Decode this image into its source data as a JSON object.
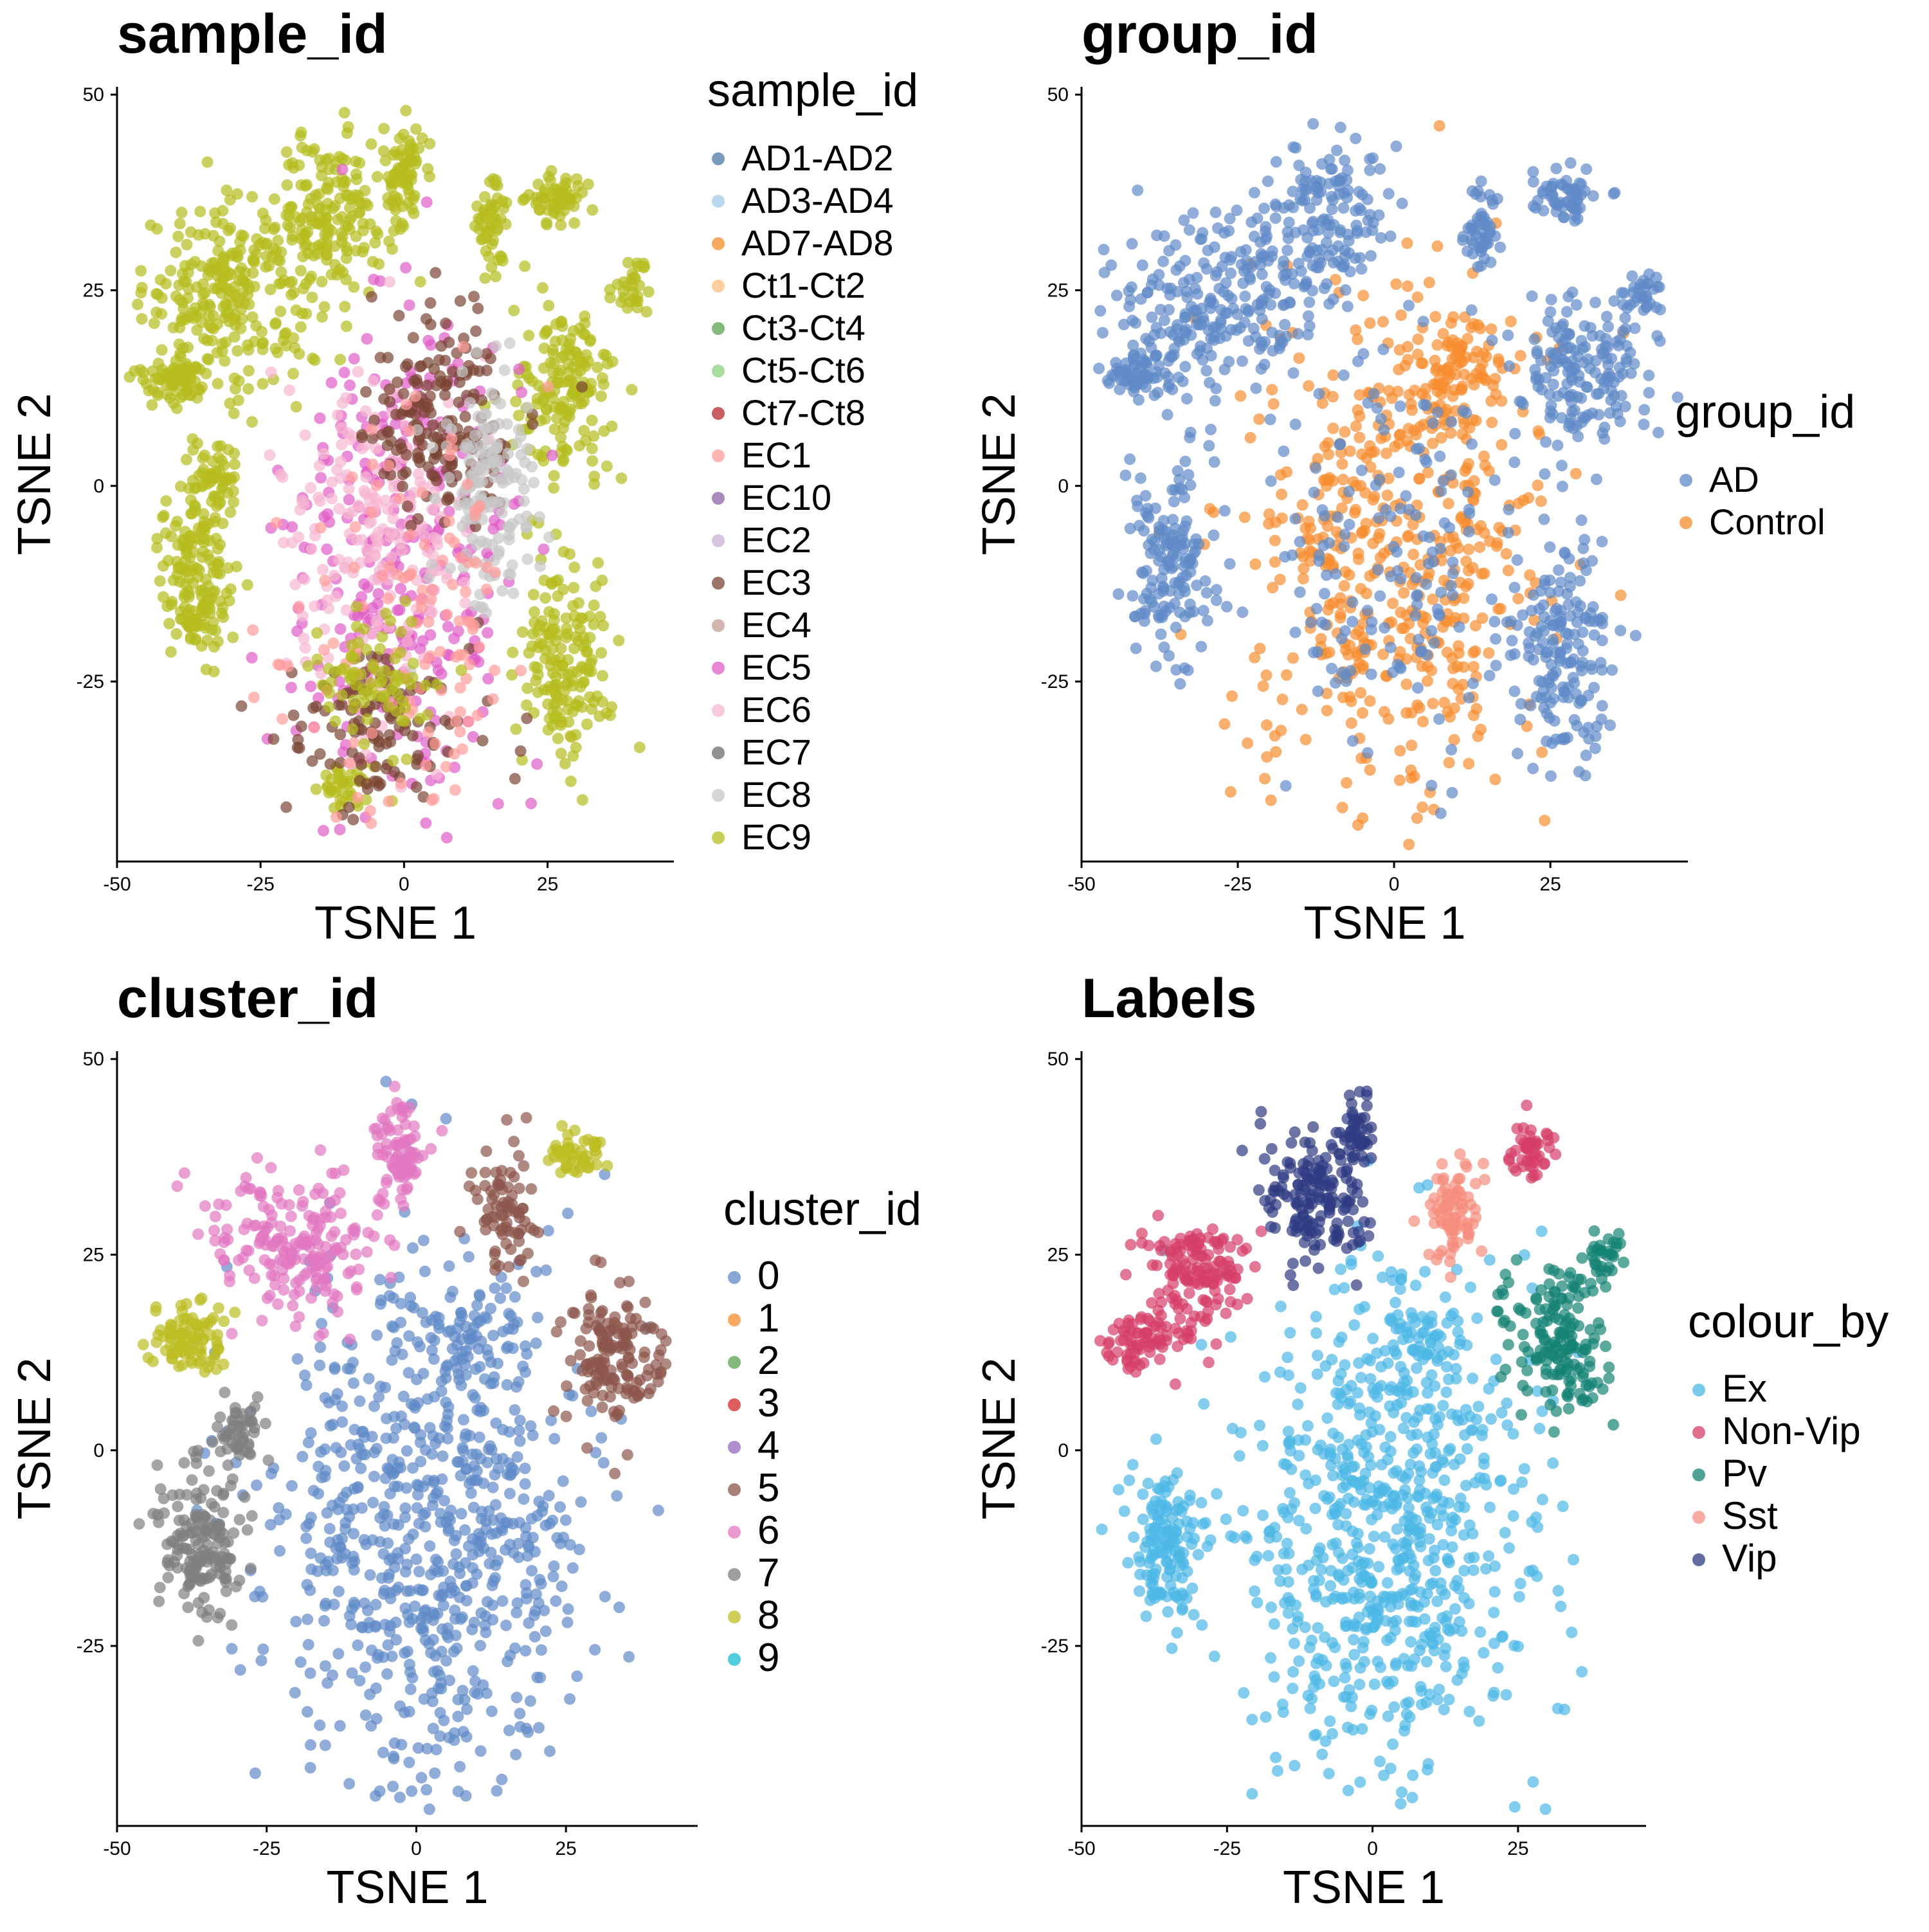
{
  "panels": [
    {
      "title": "sample_id",
      "legend_title": "sample_id",
      "xlabel": "TSNE 1",
      "ylabel": "TSNE 2",
      "xticks": [
        "-50",
        "-25",
        "0",
        "25"
      ],
      "yticks": [
        "50",
        "25",
        "0",
        "-25"
      ]
    },
    {
      "title": "group_id",
      "legend_title": "group_id",
      "xlabel": "TSNE 1",
      "ylabel": "TSNE 2",
      "xticks": [
        "-50",
        "-25",
        "0",
        "25"
      ],
      "yticks": [
        "50",
        "25",
        "0",
        "-25"
      ]
    },
    {
      "title": "cluster_id",
      "legend_title": "cluster_id",
      "xlabel": "TSNE 1",
      "ylabel": "TSNE 2",
      "xticks": [
        "-50",
        "-25",
        "0",
        "25"
      ],
      "yticks": [
        "50",
        "25",
        "0",
        "-25"
      ]
    },
    {
      "title": "Labels",
      "legend_title": "colour_by",
      "xlabel": "TSNE 1",
      "ylabel": "TSNE 2",
      "xticks": [
        "-50",
        "-25",
        "0",
        "25"
      ],
      "yticks": [
        "50",
        "25",
        "0",
        "-25"
      ]
    }
  ],
  "chart_data": [
    {
      "type": "scatter",
      "title": "sample_id",
      "xlabel": "TSNE 1",
      "ylabel": "TSNE 2",
      "xlim": [
        -50,
        47
      ],
      "ylim": [
        -48,
        51
      ],
      "legend_placement": "right",
      "grid": false,
      "legend": [
        {
          "name": "AD1-AD2",
          "color": "#4e79a7"
        },
        {
          "name": "AD3-AD4",
          "color": "#a0cbe8"
        },
        {
          "name": "AD7-AD8",
          "color": "#f28e2b"
        },
        {
          "name": "Ct1-Ct2",
          "color": "#ffbe7d"
        },
        {
          "name": "Ct3-Ct4",
          "color": "#59a14f"
        },
        {
          "name": "Ct5-Ct6",
          "color": "#8cd17d"
        },
        {
          "name": "Ct7-Ct8",
          "color": "#b6292f"
        },
        {
          "name": "EC1",
          "color": "#ff9d9a"
        },
        {
          "name": "EC10",
          "color": "#8a62a8"
        },
        {
          "name": "EC2",
          "color": "#c5b0d5"
        },
        {
          "name": "EC3",
          "color": "#7b4433"
        },
        {
          "name": "EC4",
          "color": "#c49c94"
        },
        {
          "name": "EC5",
          "color": "#e05dc8"
        },
        {
          "name": "EC6",
          "color": "#f7b6d2"
        },
        {
          "name": "EC7",
          "color": "#6e6e6e"
        },
        {
          "name": "EC8",
          "color": "#c7c7c7"
        },
        {
          "name": "EC9",
          "color": "#b5bd1e"
        }
      ],
      "regions": [
        {
          "name": "EC9",
          "cx": -30,
          "cy": 25,
          "rx": 14,
          "ry": 10,
          "n": 260
        },
        {
          "name": "EC9",
          "cx": -12,
          "cy": 35,
          "rx": 9,
          "ry": 9,
          "n": 160
        },
        {
          "name": "EC9",
          "cx": 0,
          "cy": 40,
          "rx": 3,
          "ry": 6,
          "n": 70
        },
        {
          "name": "EC9",
          "cx": -40,
          "cy": 14,
          "rx": 6,
          "ry": 3,
          "n": 80
        },
        {
          "name": "EC9",
          "cx": -36,
          "cy": -12,
          "rx": 6,
          "ry": 10,
          "n": 160
        },
        {
          "name": "EC9",
          "cx": -33,
          "cy": 0,
          "rx": 4,
          "ry": 5,
          "n": 60
        },
        {
          "name": "EC9",
          "cx": 28,
          "cy": 12,
          "rx": 8,
          "ry": 10,
          "n": 160
        },
        {
          "name": "EC9",
          "cx": 28,
          "cy": -22,
          "rx": 7,
          "ry": 12,
          "n": 170
        },
        {
          "name": "EC9",
          "cx": 27,
          "cy": 37,
          "rx": 5,
          "ry": 3,
          "n": 60
        },
        {
          "name": "EC9",
          "cx": 15,
          "cy": 33,
          "rx": 3,
          "ry": 5,
          "n": 50
        },
        {
          "name": "EC9",
          "cx": -10,
          "cy": -38,
          "rx": 4,
          "ry": 3,
          "n": 40
        },
        {
          "name": "EC9",
          "cx": 40,
          "cy": 25,
          "rx": 3,
          "ry": 3,
          "n": 30
        },
        {
          "name": "EC5",
          "cx": 0,
          "cy": -10,
          "rx": 18,
          "ry": 28,
          "n": 320
        },
        {
          "name": "EC6",
          "cx": -5,
          "cy": -5,
          "rx": 14,
          "ry": 20,
          "n": 200
        },
        {
          "name": "EC3",
          "cx": 6,
          "cy": 8,
          "rx": 12,
          "ry": 12,
          "n": 180
        },
        {
          "name": "EC3",
          "cx": -5,
          "cy": -30,
          "rx": 14,
          "ry": 10,
          "n": 120
        },
        {
          "name": "EC8",
          "cx": 15,
          "cy": 0,
          "rx": 8,
          "ry": 14,
          "n": 150
        },
        {
          "name": "EC1",
          "cx": 3,
          "cy": -20,
          "rx": 20,
          "ry": 24,
          "n": 120
        },
        {
          "name": "EC9",
          "cx": -5,
          "cy": -25,
          "rx": 10,
          "ry": 8,
          "n": 80
        }
      ]
    },
    {
      "type": "scatter",
      "title": "group_id",
      "xlabel": "TSNE 1",
      "ylabel": "TSNE 2",
      "xlim": [
        -50,
        47
      ],
      "ylim": [
        -48,
        51
      ],
      "legend_placement": "right",
      "grid": false,
      "legend": [
        {
          "name": "AD",
          "color": "#5f8ac7"
        },
        {
          "name": "Control",
          "color": "#f68d2f"
        }
      ],
      "regions": [
        {
          "name": "Control",
          "cx": 0,
          "cy": -8,
          "rx": 22,
          "ry": 30,
          "n": 520
        },
        {
          "name": "Control",
          "cx": 10,
          "cy": 14,
          "rx": 7,
          "ry": 6,
          "n": 80
        },
        {
          "name": "AD",
          "cx": -28,
          "cy": 24,
          "rx": 16,
          "ry": 10,
          "n": 240
        },
        {
          "name": "AD",
          "cx": -10,
          "cy": 35,
          "rx": 9,
          "ry": 9,
          "n": 140
        },
        {
          "name": "AD",
          "cx": -40,
          "cy": 14,
          "rx": 6,
          "ry": 3,
          "n": 70
        },
        {
          "name": "AD",
          "cx": -36,
          "cy": -10,
          "rx": 6,
          "ry": 12,
          "n": 150
        },
        {
          "name": "AD",
          "cx": 30,
          "cy": 14,
          "rx": 10,
          "ry": 10,
          "n": 170
        },
        {
          "name": "AD",
          "cx": 27,
          "cy": -20,
          "rx": 8,
          "ry": 14,
          "n": 170
        },
        {
          "name": "AD",
          "cx": 27,
          "cy": 37,
          "rx": 5,
          "ry": 3,
          "n": 60
        },
        {
          "name": "AD",
          "cx": 14,
          "cy": 33,
          "rx": 3,
          "ry": 5,
          "n": 50
        },
        {
          "name": "AD",
          "cx": 0,
          "cy": -10,
          "rx": 18,
          "ry": 26,
          "n": 160
        },
        {
          "name": "AD",
          "cx": 40,
          "cy": 25,
          "rx": 3,
          "ry": 3,
          "n": 30
        }
      ]
    },
    {
      "type": "scatter",
      "title": "cluster_id",
      "xlabel": "TSNE 1",
      "ylabel": "TSNE 2",
      "xlim": [
        -50,
        47
      ],
      "ylim": [
        -48,
        51
      ],
      "legend_placement": "right",
      "grid": false,
      "legend": [
        {
          "name": "0",
          "color": "#5f8ac7"
        },
        {
          "name": "1",
          "color": "#f68d2f"
        },
        {
          "name": "2",
          "color": "#59a14f"
        },
        {
          "name": "3",
          "color": "#d62728"
        },
        {
          "name": "4",
          "color": "#9467bd"
        },
        {
          "name": "5",
          "color": "#8c564b"
        },
        {
          "name": "6",
          "color": "#e377c2"
        },
        {
          "name": "7",
          "color": "#7f7f7f"
        },
        {
          "name": "8",
          "color": "#bcbd22"
        },
        {
          "name": "9",
          "color": "#17becf"
        }
      ],
      "regions": [
        {
          "name": "0",
          "cx": 2,
          "cy": -10,
          "rx": 24,
          "ry": 30,
          "n": 720
        },
        {
          "name": "0",
          "cx": 8,
          "cy": 14,
          "rx": 8,
          "ry": 6,
          "n": 60
        },
        {
          "name": "6",
          "cx": -20,
          "cy": 26,
          "rx": 13,
          "ry": 8,
          "n": 200
        },
        {
          "name": "6",
          "cx": -3,
          "cy": 38,
          "rx": 4,
          "ry": 7,
          "n": 90
        },
        {
          "name": "8",
          "cx": -38,
          "cy": 14,
          "rx": 6,
          "ry": 4,
          "n": 90
        },
        {
          "name": "8",
          "cx": 27,
          "cy": 38,
          "rx": 4,
          "ry": 3,
          "n": 50
        },
        {
          "name": "7",
          "cx": -36,
          "cy": -12,
          "rx": 6,
          "ry": 9,
          "n": 160
        },
        {
          "name": "7",
          "cx": -30,
          "cy": 2,
          "rx": 4,
          "ry": 4,
          "n": 50
        },
        {
          "name": "5",
          "cx": 15,
          "cy": 30,
          "rx": 5,
          "ry": 8,
          "n": 80
        },
        {
          "name": "5",
          "cx": 33,
          "cy": 12,
          "rx": 8,
          "ry": 8,
          "n": 150
        }
      ]
    },
    {
      "type": "scatter",
      "title": "Labels",
      "xlabel": "TSNE 1",
      "ylabel": "TSNE 2",
      "xlim": [
        -50,
        47
      ],
      "ylim": [
        -48,
        51
      ],
      "legend_placement": "right",
      "grid": false,
      "legend": [
        {
          "name": "Ex",
          "color": "#4db8e5"
        },
        {
          "name": "Non-Vip",
          "color": "#d63f68"
        },
        {
          "name": "Pv",
          "color": "#158374"
        },
        {
          "name": "Sst",
          "color": "#f58d7e"
        },
        {
          "name": "Vip",
          "color": "#2f3b82"
        }
      ],
      "regions": [
        {
          "name": "Ex",
          "cx": 2,
          "cy": -10,
          "rx": 24,
          "ry": 30,
          "n": 720
        },
        {
          "name": "Ex",
          "cx": -36,
          "cy": -12,
          "rx": 6,
          "ry": 9,
          "n": 140
        },
        {
          "name": "Ex",
          "cx": 8,
          "cy": 14,
          "rx": 8,
          "ry": 6,
          "n": 60
        },
        {
          "name": "Non-Vip",
          "cx": -30,
          "cy": 22,
          "rx": 8,
          "ry": 8,
          "n": 150
        },
        {
          "name": "Non-Vip",
          "cx": -40,
          "cy": 14,
          "rx": 6,
          "ry": 3,
          "n": 70
        },
        {
          "name": "Non-Vip",
          "cx": 27,
          "cy": 38,
          "rx": 4,
          "ry": 3,
          "n": 50
        },
        {
          "name": "Vip",
          "cx": -10,
          "cy": 32,
          "rx": 8,
          "ry": 8,
          "n": 160
        },
        {
          "name": "Vip",
          "cx": -3,
          "cy": 40,
          "rx": 3,
          "ry": 5,
          "n": 50
        },
        {
          "name": "Sst",
          "cx": 14,
          "cy": 30,
          "rx": 4,
          "ry": 7,
          "n": 80
        },
        {
          "name": "Pv",
          "cx": 32,
          "cy": 14,
          "rx": 9,
          "ry": 9,
          "n": 170
        },
        {
          "name": "Pv",
          "cx": 40,
          "cy": 25,
          "rx": 3,
          "ry": 3,
          "n": 30
        }
      ]
    }
  ]
}
